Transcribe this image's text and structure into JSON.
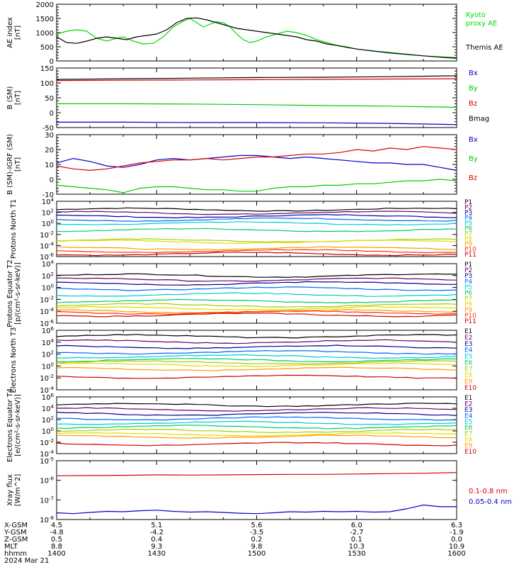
{
  "chart_data": [
    {
      "type": "line",
      "ylabel": "AE index [nT]",
      "ylim": [
        0,
        2000
      ],
      "yticks": [
        "0",
        "500",
        "1000",
        "1500",
        "2000"
      ],
      "series": [
        {
          "name": "Kyoto proxy AE",
          "color": "#00dd00",
          "x": [
            1400,
            1403,
            1406,
            1409,
            1412,
            1415,
            1418,
            1420,
            1423,
            1426,
            1429,
            1432,
            1435,
            1438,
            1440,
            1442,
            1444,
            1446,
            1448,
            1450,
            1452,
            1454,
            1456,
            1458,
            1500,
            1503,
            1506,
            1509,
            1512,
            1515,
            1518,
            1521,
            1524,
            1527,
            1530,
            1535,
            1540,
            1545,
            1550,
            1555,
            1600
          ],
          "y": [
            950,
            1050,
            1100,
            1050,
            800,
            700,
            800,
            850,
            700,
            600,
            620,
            850,
            1200,
            1400,
            1500,
            1350,
            1200,
            1300,
            1380,
            1350,
            1200,
            950,
            750,
            650,
            700,
            850,
            950,
            1050,
            1000,
            900,
            750,
            650,
            550,
            500,
            420,
            350,
            300,
            240,
            180,
            130,
            80
          ]
        },
        {
          "name": "Themis AE",
          "color": "#000000",
          "x": [
            1400,
            1403,
            1406,
            1409,
            1412,
            1415,
            1418,
            1421,
            1424,
            1427,
            1430,
            1433,
            1436,
            1439,
            1442,
            1445,
            1448,
            1451,
            1454,
            1457,
            1500,
            1503,
            1506,
            1509,
            1512,
            1515,
            1518,
            1521,
            1524,
            1527,
            1530,
            1535,
            1540,
            1545,
            1550,
            1555,
            1600
          ],
          "y": [
            850,
            650,
            620,
            700,
            800,
            850,
            800,
            750,
            850,
            900,
            950,
            1100,
            1350,
            1500,
            1520,
            1450,
            1350,
            1250,
            1150,
            1100,
            1050,
            1000,
            950,
            900,
            850,
            750,
            700,
            600,
            550,
            480,
            420,
            350,
            280,
            230,
            180,
            140,
            110
          ]
        }
      ]
    },
    {
      "type": "line",
      "ylabel": "B (SM) [nT]",
      "ylim": [
        -50,
        150
      ],
      "yticks": [
        "-50",
        "0",
        "50",
        "100",
        "150"
      ],
      "series": [
        {
          "name": "Bx",
          "color": "#0000cc",
          "x": [
            1400,
            1420,
            1440,
            1500,
            1520,
            1540,
            1600
          ],
          "y": [
            -32,
            -32,
            -33,
            -33,
            -34,
            -36,
            -40
          ]
        },
        {
          "name": "By",
          "color": "#00cc00",
          "x": [
            1400,
            1420,
            1440,
            1500,
            1520,
            1540,
            1600
          ],
          "y": [
            30,
            30,
            29,
            27,
            24,
            22,
            18
          ]
        },
        {
          "name": "Bz",
          "color": "#dd0000",
          "x": [
            1400,
            1420,
            1440,
            1500,
            1520,
            1540,
            1600
          ],
          "y": [
            108,
            109,
            110,
            111,
            112,
            113,
            114
          ]
        },
        {
          "name": "Bmag",
          "color": "#000000",
          "x": [
            1400,
            1420,
            1440,
            1500,
            1520,
            1540,
            1600
          ],
          "y": [
            112,
            114,
            116,
            118,
            119,
            121,
            124
          ]
        }
      ]
    },
    {
      "type": "line",
      "ylabel": "B (SM)-IGRF (SM) [nT]",
      "ylim": [
        -10,
        30
      ],
      "yticks": [
        "-10",
        "0",
        "10",
        "20",
        "30"
      ],
      "series": [
        {
          "name": "Bx",
          "color": "#0000cc",
          "x": [
            1400,
            1405,
            1410,
            1415,
            1420,
            1425,
            1430,
            1435,
            1440,
            1445,
            1450,
            1455,
            1500,
            1505,
            1510,
            1515,
            1520,
            1525,
            1530,
            1535,
            1540,
            1545,
            1550,
            1555,
            1600
          ],
          "y": [
            11,
            14,
            12,
            9,
            8,
            10,
            13,
            14,
            13,
            14,
            15,
            16,
            16,
            15,
            14,
            15,
            14,
            13,
            12,
            11,
            11,
            10,
            10,
            8,
            6
          ]
        },
        {
          "name": "By",
          "color": "#00cc00",
          "x": [
            1400,
            1405,
            1410,
            1415,
            1420,
            1425,
            1430,
            1435,
            1440,
            1445,
            1450,
            1455,
            1500,
            1505,
            1510,
            1515,
            1520,
            1525,
            1530,
            1535,
            1540,
            1545,
            1550,
            1555,
            1600
          ],
          "y": [
            -4,
            -5,
            -6,
            -7,
            -9,
            -6,
            -5,
            -5,
            -6,
            -7,
            -7,
            -8,
            -8,
            -6,
            -5,
            -5,
            -4,
            -4,
            -3,
            -3,
            -2,
            -1,
            -1,
            0,
            -1
          ]
        },
        {
          "name": "Bz",
          "color": "#dd0000",
          "x": [
            1400,
            1405,
            1410,
            1415,
            1420,
            1425,
            1430,
            1435,
            1440,
            1445,
            1450,
            1455,
            1500,
            1505,
            1510,
            1515,
            1520,
            1525,
            1530,
            1535,
            1540,
            1545,
            1550,
            1555,
            1600
          ],
          "y": [
            9,
            7,
            6,
            7,
            9,
            11,
            12,
            13,
            13,
            14,
            13,
            14,
            15,
            15,
            16,
            17,
            17,
            18,
            20,
            19,
            21,
            20,
            22,
            21,
            20
          ]
        }
      ]
    },
    {
      "type": "line",
      "yscale": "log",
      "ylabel": "Protons North T1",
      "ylim": [
        1e-06,
        10000.0
      ],
      "yticks": [
        "10^-6",
        "10^-4",
        "10^-2",
        "10^0",
        "10^2",
        "10^4"
      ],
      "series": [
        {
          "name": "P1",
          "color": "#000000",
          "y0": 2.5
        },
        {
          "name": "P2",
          "color": "#660066",
          "y0": 1.9
        },
        {
          "name": "P3",
          "color": "#000099",
          "y0": 1.3
        },
        {
          "name": "P4",
          "color": "#0066ff",
          "y0": 0.7
        },
        {
          "name": "P5",
          "color": "#00cccc",
          "y0": 0
        },
        {
          "name": "P6",
          "color": "#00cc66",
          "y0": -1.2
        },
        {
          "name": "P7",
          "color": "#aacc00",
          "y0": -3.1
        },
        {
          "name": "P8",
          "color": "#dddd00",
          "y0": -3.3
        },
        {
          "name": "P9",
          "color": "#ff9900",
          "y0": -4.5
        },
        {
          "name": "P10",
          "color": "#ff3300",
          "y0": -5
        },
        {
          "name": "P11",
          "color": "#cc0000",
          "y0": -5.5
        }
      ]
    },
    {
      "type": "line",
      "yscale": "log",
      "ylabel": "Protons Equator T2 [p/(cm²-s-sr-keV)]",
      "ylim": [
        1e-06,
        10000.0
      ],
      "yticks": [
        "10^-6",
        "10^-4",
        "10^-2",
        "10^0",
        "10^2",
        "10^4"
      ],
      "series": [
        {
          "name": "P1",
          "color": "#000000",
          "y0": 2.0
        },
        {
          "name": "P2",
          "color": "#660066",
          "y0": 1.3
        },
        {
          "name": "P3",
          "color": "#000099",
          "y0": 0.7
        },
        {
          "name": "P4",
          "color": "#0066ff",
          "y0": -0.2
        },
        {
          "name": "P5",
          "color": "#00cccc",
          "y0": -1.2
        },
        {
          "name": "P6",
          "color": "#00cc66",
          "y0": -2.3
        },
        {
          "name": "P7",
          "color": "#aacc00",
          "y0": -3.0
        },
        {
          "name": "P8",
          "color": "#dddd00",
          "y0": -3.5
        },
        {
          "name": "P9",
          "color": "#ff9900",
          "y0": -4.0
        },
        {
          "name": "P10",
          "color": "#ff3300",
          "y0": -4.2
        },
        {
          "name": "P11",
          "color": "#cc0000",
          "y0": -4.6
        }
      ]
    },
    {
      "type": "line",
      "yscale": "log",
      "ylabel": "Electrons North T3",
      "ylim": [
        0.0001,
        1000000.0
      ],
      "yticks": [
        "10^-4",
        "10^-2",
        "10^0",
        "10^2",
        "10^4",
        "10^6"
      ],
      "series": [
        {
          "name": "E1",
          "color": "#000000",
          "y0": 5.0
        },
        {
          "name": "E2",
          "color": "#660066",
          "y0": 4.1
        },
        {
          "name": "E3",
          "color": "#000099",
          "y0": 3.2
        },
        {
          "name": "E4",
          "color": "#0066ff",
          "y0": 2.3
        },
        {
          "name": "E5",
          "color": "#00cccc",
          "y0": 1.6
        },
        {
          "name": "E6",
          "color": "#00cc66",
          "y0": 1.0
        },
        {
          "name": "E7",
          "color": "#aacc00",
          "y0": 0.6
        },
        {
          "name": "E8",
          "color": "#dddd00",
          "y0": 0.2
        },
        {
          "name": "E9",
          "color": "#ff9900",
          "y0": -0.5
        },
        {
          "name": "E10",
          "color": "#cc0000",
          "y0": -1.8
        }
      ]
    },
    {
      "type": "line",
      "yscale": "log",
      "ylabel": "Electrons Equator T4 [e/(cm²-s-sr-keV)]",
      "ylim": [
        0.0001,
        1000000.0
      ],
      "yticks": [
        "10^-4",
        "10^-2",
        "10^0",
        "10^2",
        "10^4",
        "10^6"
      ],
      "series": [
        {
          "name": "E1",
          "color": "#000000",
          "y0": 4.6
        },
        {
          "name": "E2",
          "color": "#660066",
          "y0": 3.8
        },
        {
          "name": "E3",
          "color": "#000099",
          "y0": 3.0
        },
        {
          "name": "E4",
          "color": "#0066ff",
          "y0": 2.2
        },
        {
          "name": "E5",
          "color": "#00cccc",
          "y0": 1.4
        },
        {
          "name": "E6",
          "color": "#00cc66",
          "y0": 0.7
        },
        {
          "name": "E7",
          "color": "#aacc00",
          "y0": 0.0
        },
        {
          "name": "E8",
          "color": "#dddd00",
          "y0": -0.6
        },
        {
          "name": "E9",
          "color": "#ff9900",
          "y0": -1.0
        },
        {
          "name": "E10",
          "color": "#cc0000",
          "y0": -2.3
        }
      ]
    },
    {
      "type": "line",
      "yscale": "log",
      "ylabel": "Xray flux [W/m^2]",
      "ylim": [
        1e-08,
        1e-05
      ],
      "yticks": [
        "10^-8",
        "10^-7",
        "10^-6",
        "10^-5"
      ],
      "series": [
        {
          "name": "0.1-0.8 nm",
          "color": "#dd0000",
          "x": [
            1400,
            1410,
            1420,
            1430,
            1440,
            1450,
            1500,
            1510,
            1520,
            1530,
            1540,
            1550,
            1600
          ],
          "y": [
            1.7e-06,
            1.75e-06,
            1.8e-06,
            1.9e-06,
            1.85e-06,
            1.9e-06,
            1.95e-06,
            2e-06,
            2e-06,
            2.1e-06,
            2.2e-06,
            2.3e-06,
            2.5e-06
          ]
        },
        {
          "name": "0.05-0.4 nm",
          "color": "#0000cc",
          "x": [
            1400,
            1405,
            1410,
            1415,
            1420,
            1425,
            1430,
            1435,
            1440,
            1445,
            1450,
            1455,
            1500,
            1505,
            1510,
            1515,
            1520,
            1525,
            1530,
            1535,
            1540,
            1545,
            1550,
            1555,
            1600
          ],
          "y": [
            2.2e-08,
            2e-08,
            2.3e-08,
            2.6e-08,
            2.5e-08,
            2.8e-08,
            3e-08,
            2.6e-08,
            2.4e-08,
            2.5e-08,
            2.3e-08,
            2.1e-08,
            2e-08,
            2.2e-08,
            2.5e-08,
            2.4e-08,
            2.6e-08,
            2.5e-08,
            2.6e-08,
            2.4e-08,
            2.5e-08,
            3.5e-08,
            5.5e-08,
            4.5e-08,
            4.5e-08
          ]
        }
      ]
    }
  ],
  "ae_labels": {
    "kyoto": "Kyoto\nproxy AE",
    "themis": "Themis AE"
  },
  "x_axis": {
    "row_labels": [
      "X-GSM",
      "Y-GSM",
      "Z-GSM",
      "MLT",
      "hhmm",
      "2024 Mar 21"
    ],
    "columns": [
      {
        "values": [
          "4.5",
          "-4.8",
          "0.5",
          "8.8",
          "1400"
        ]
      },
      {
        "values": [
          "5.1",
          "-4.2",
          "0.4",
          "9.3",
          "1430"
        ]
      },
      {
        "values": [
          "5.6",
          "-3.5",
          "0.2",
          "9.8",
          "1500"
        ]
      },
      {
        "values": [
          "6.0",
          "-2.7",
          "0.1",
          "10.3",
          "1530"
        ]
      },
      {
        "values": [
          "6.3",
          "-1.9",
          "0.0",
          "10.9",
          "1600"
        ]
      }
    ]
  }
}
